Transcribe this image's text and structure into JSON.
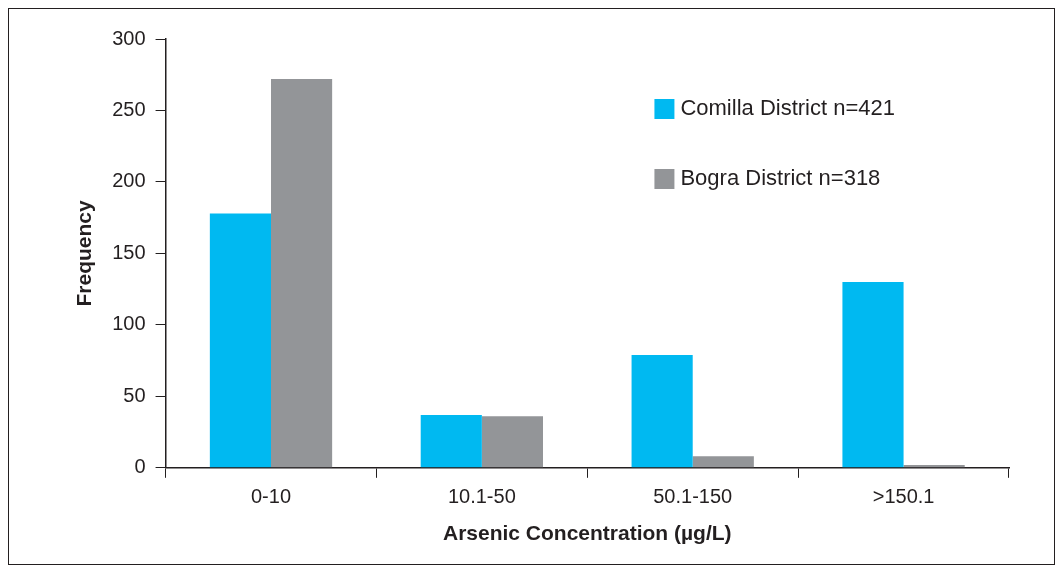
{
  "chart_data": {
    "type": "bar",
    "xlabel": "Arsenic Concentration (µg/L)",
    "ylabel": "Frequency",
    "categories": [
      "0-10",
      "10.1-50",
      "50.1-150",
      ">150.1"
    ],
    "series": [
      {
        "name": "Comilla District n=421",
        "color": "#00b9f1",
        "values": [
          178,
          37,
          79,
          130
        ]
      },
      {
        "name": "Bogra District n=318",
        "color": "#939598",
        "values": [
          272,
          36,
          8,
          2
        ]
      }
    ],
    "ylim": [
      0,
      300
    ],
    "yticks": [
      0,
      50,
      100,
      150,
      200,
      250,
      300
    ],
    "grid": false,
    "legend": "top right"
  }
}
